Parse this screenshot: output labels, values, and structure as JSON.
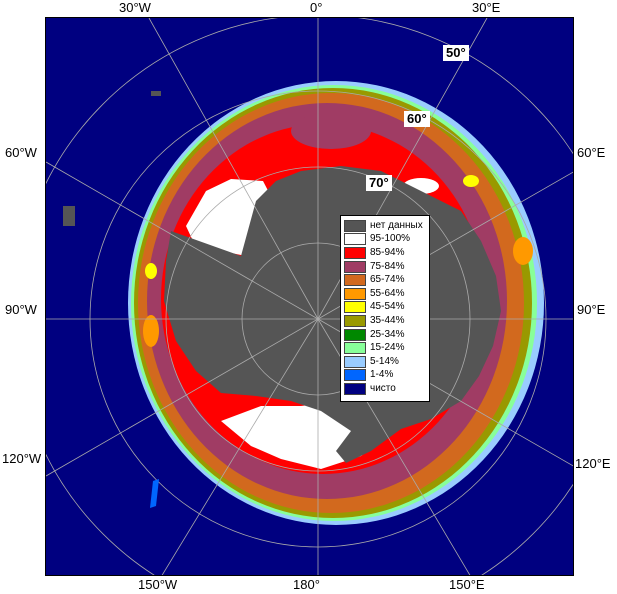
{
  "edge_labels": {
    "top_30w": "30°W",
    "top_0": "0°",
    "top_30e": "30°E",
    "left_60w": "60°W",
    "left_90w": "90°W",
    "left_120w": "120°W",
    "right_60e": "60°E",
    "right_90e": "90°E",
    "right_120e": "120°E",
    "bottom_150w": "150°W",
    "bottom_180": "180°",
    "bottom_150e": "150°E"
  },
  "lat_labels": {
    "lat50": "50°",
    "lat60": "60°",
    "lat70": "70°"
  },
  "legend": [
    {
      "label": "нет данных",
      "color": "#555555"
    },
    {
      "label": "95-100%",
      "color": "#ffffff"
    },
    {
      "label": "85-94%",
      "color": "#ff0000"
    },
    {
      "label": "75-84%",
      "color": "#a03c64"
    },
    {
      "label": "65-74%",
      "color": "#d2691e"
    },
    {
      "label": "55-64%",
      "color": "#ff9900"
    },
    {
      "label": "45-54%",
      "color": "#ffff00"
    },
    {
      "label": "35-44%",
      "color": "#999900"
    },
    {
      "label": "25-34%",
      "color": "#008800"
    },
    {
      "label": "15-24%",
      "color": "#88ff99"
    },
    {
      "label": "5-14%",
      "color": "#99ccff"
    },
    {
      "label": "1-4%",
      "color": "#0066ff"
    },
    {
      "label": "чисто",
      "color": "#000080"
    }
  ],
  "colors": {
    "open_water": "#000080",
    "land_no_data": "#555555",
    "graticule": "#aaaaaa"
  }
}
